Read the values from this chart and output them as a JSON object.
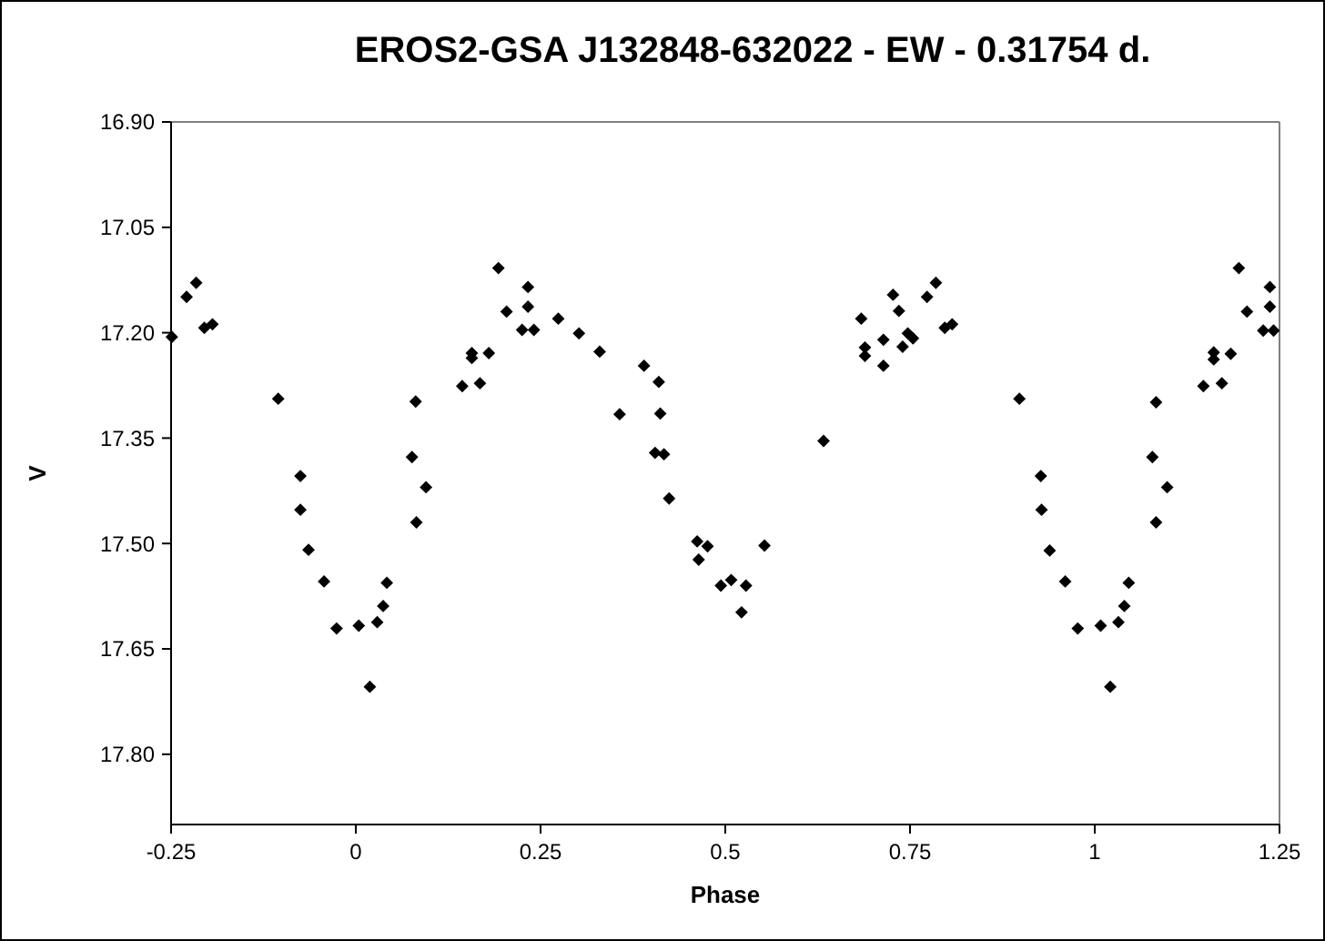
{
  "chart_data": {
    "type": "scatter",
    "title": "EROS2-GSA J132848-632022  - EW - 0.31754 d.",
    "xlabel": "Phase",
    "ylabel": "V",
    "xlim": [
      -0.25,
      1.25
    ],
    "ylim": [
      17.9,
      16.9
    ],
    "xticks": [
      -0.25,
      0,
      0.25,
      0.5,
      0.75,
      1,
      1.25
    ],
    "yticks": [
      {
        "value": 16.9,
        "label": "16.90"
      },
      {
        "value": 17.05,
        "label": "17.05"
      },
      {
        "value": 17.2,
        "label": "17.20"
      },
      {
        "value": 17.35,
        "label": "17.35"
      },
      {
        "value": 17.5,
        "label": "17.50"
      },
      {
        "value": 17.65,
        "label": "17.65"
      },
      {
        "value": 17.8,
        "label": "17.80"
      }
    ],
    "grid": false,
    "marker": "diamond",
    "series": [
      {
        "color": "#000000",
        "x": [
          -0.249,
          -0.229,
          -0.216,
          -0.205,
          -0.194,
          -0.105,
          -0.075,
          -0.075,
          -0.064,
          -0.043,
          -0.026,
          0.004,
          0.019,
          0.029,
          0.037,
          0.042,
          0.076,
          0.081,
          0.082,
          0.095,
          0.144,
          0.157,
          0.157,
          0.168,
          0.18,
          0.193,
          0.204,
          0.225,
          0.233,
          0.233,
          0.241,
          0.274,
          0.302,
          0.33,
          0.357,
          0.39,
          0.41,
          0.412,
          0.405,
          0.417,
          0.424,
          0.462,
          0.476,
          0.464,
          0.494,
          0.508,
          0.528,
          0.522,
          0.553,
          0.633,
          0.684,
          0.689,
          0.689,
          0.714,
          0.714,
          0.727,
          0.735,
          0.74,
          0.747,
          0.754,
          0.773,
          0.785,
          0.797,
          0.807,
          0.898,
          0.927,
          0.928,
          0.939,
          0.96,
          0.977,
          1.008,
          1.021,
          1.032,
          1.04,
          1.046,
          1.078,
          1.083,
          1.083,
          1.098,
          1.147,
          1.161,
          1.161,
          1.172,
          1.184,
          1.195,
          1.206,
          1.228,
          1.237,
          1.237,
          1.242
        ],
        "values": [
          17.206,
          17.149,
          17.129,
          17.193,
          17.188,
          17.294,
          17.404,
          17.452,
          17.509,
          17.554,
          17.621,
          17.617,
          17.704,
          17.612,
          17.589,
          17.556,
          17.377,
          17.298,
          17.47,
          17.42,
          17.276,
          17.229,
          17.236,
          17.272,
          17.229,
          17.108,
          17.17,
          17.196,
          17.135,
          17.163,
          17.196,
          17.18,
          17.201,
          17.227,
          17.316,
          17.247,
          17.27,
          17.315,
          17.371,
          17.373,
          17.436,
          17.497,
          17.504,
          17.523,
          17.56,
          17.552,
          17.56,
          17.598,
          17.503,
          17.354,
          17.18,
          17.221,
          17.233,
          17.21,
          17.247,
          17.146,
          17.169,
          17.22,
          17.201,
          17.208,
          17.149,
          17.129,
          17.193,
          17.188,
          17.294,
          17.404,
          17.452,
          17.51,
          17.554,
          17.621,
          17.617,
          17.704,
          17.612,
          17.589,
          17.556,
          17.377,
          17.299,
          17.47,
          17.42,
          17.276,
          17.228,
          17.238,
          17.272,
          17.23,
          17.108,
          17.17,
          17.197,
          17.135,
          17.163,
          17.197
        ]
      }
    ]
  }
}
